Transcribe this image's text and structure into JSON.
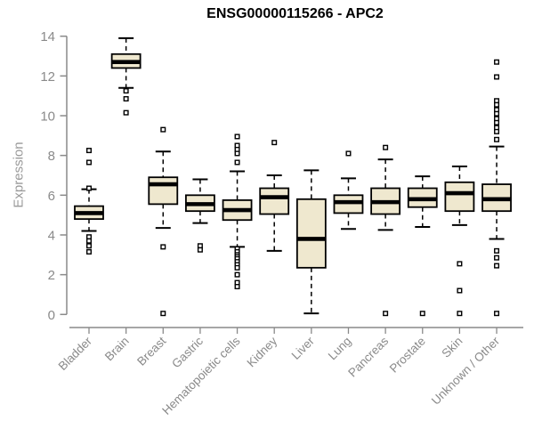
{
  "figure": {
    "title": "ENSG00000115266 - APC2",
    "ylabel": "Expression"
  },
  "chart_data": {
    "type": "boxplot",
    "title": "ENSG00000115266 - APC2",
    "xlabel": "",
    "ylabel": "Expression",
    "ylim": [
      0,
      14
    ],
    "yticks": [
      0,
      2,
      4,
      6,
      8,
      10,
      12,
      14
    ],
    "grid": false,
    "legend": "none",
    "categories": [
      "Bladder",
      "Brain",
      "Breast",
      "Gastric",
      "Hematopoietic cells",
      "Kidney",
      "Liver",
      "Lung",
      "Pancreas",
      "Prostate",
      "Skin",
      "Unknown / Other"
    ],
    "series": [
      {
        "name": "Bladder",
        "low": 4.2,
        "q1": 4.8,
        "median": 5.1,
        "q3": 5.45,
        "high": 6.3,
        "outliers": [
          8.25,
          7.65,
          6.35,
          3.9,
          3.7,
          3.45,
          3.15
        ]
      },
      {
        "name": "Brain",
        "low": 11.4,
        "q1": 12.4,
        "median": 12.7,
        "q3": 13.1,
        "high": 13.9,
        "outliers": [
          11.25,
          10.85,
          10.15
        ]
      },
      {
        "name": "Breast",
        "low": 4.35,
        "q1": 5.55,
        "median": 6.55,
        "q3": 6.9,
        "high": 8.2,
        "outliers": [
          9.3,
          3.4,
          0.05
        ]
      },
      {
        "name": "Gastric",
        "low": 4.6,
        "q1": 5.2,
        "median": 5.55,
        "q3": 6.0,
        "high": 6.8,
        "outliers": [
          3.45,
          3.25
        ]
      },
      {
        "name": "Hematopoietic cells",
        "low": 3.4,
        "q1": 4.75,
        "median": 5.25,
        "q3": 5.75,
        "high": 7.2,
        "outliers": [
          8.95,
          8.5,
          8.3,
          8.1,
          7.65,
          3.3,
          3.15,
          3.0,
          2.9,
          2.8,
          2.65,
          2.5,
          2.35,
          2.0,
          1.6,
          1.4
        ]
      },
      {
        "name": "Kidney",
        "low": 3.2,
        "q1": 5.05,
        "median": 5.9,
        "q3": 6.35,
        "high": 7.0,
        "outliers": [
          8.65
        ]
      },
      {
        "name": "Liver",
        "low": 0.05,
        "q1": 2.35,
        "median": 3.8,
        "q3": 5.8,
        "high": 7.25,
        "outliers": []
      },
      {
        "name": "Lung",
        "low": 4.3,
        "q1": 5.1,
        "median": 5.65,
        "q3": 6.0,
        "high": 6.85,
        "outliers": [
          8.1
        ]
      },
      {
        "name": "Pancreas",
        "low": 4.25,
        "q1": 5.05,
        "median": 5.65,
        "q3": 6.35,
        "high": 7.8,
        "outliers": [
          8.4,
          0.05
        ]
      },
      {
        "name": "Prostate",
        "low": 4.4,
        "q1": 5.4,
        "median": 5.8,
        "q3": 6.35,
        "high": 6.95,
        "outliers": [
          0.05
        ]
      },
      {
        "name": "Skin",
        "low": 4.5,
        "q1": 5.2,
        "median": 6.1,
        "q3": 6.65,
        "high": 7.45,
        "outliers": [
          2.55,
          1.2,
          0.05
        ]
      },
      {
        "name": "Unknown / Other",
        "low": 3.8,
        "q1": 5.2,
        "median": 5.8,
        "q3": 6.55,
        "high": 8.45,
        "outliers": [
          12.7,
          11.95,
          10.75,
          10.55,
          10.3,
          10.1,
          9.85,
          9.65,
          9.4,
          9.2,
          8.8,
          3.2,
          2.85,
          2.45,
          0.05
        ]
      }
    ],
    "colors": {
      "box_fill": "#EFE8CF",
      "box_stroke": "#000000",
      "median": "#000000",
      "outlier_fill": "#ffffff",
      "axis_gray": "#8a8a8a",
      "title_color": "#000000"
    }
  }
}
